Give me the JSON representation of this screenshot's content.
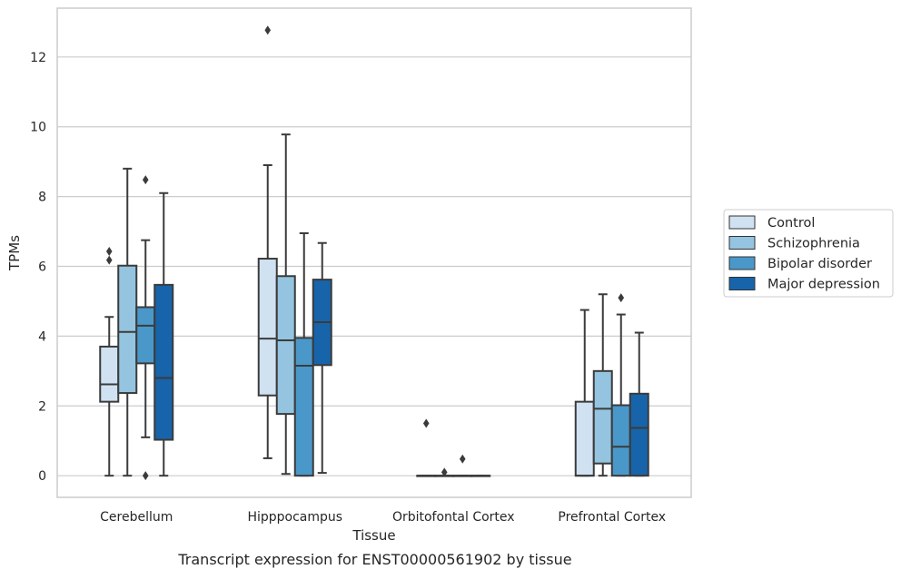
{
  "chart_data": {
    "type": "box",
    "xlabel": "Tissue",
    "ylabel": "TPMs",
    "caption": "Transcript expression for ENST00000561902 by tissue",
    "ylim": [
      -0.62,
      13.4
    ],
    "yticks": [
      0,
      2,
      4,
      6,
      8,
      10,
      12
    ],
    "grid": "horizontal",
    "legend_position": "right",
    "categories": [
      "Cerebellum",
      "Hipppocampus",
      "Orbitofontal Cortex",
      "Prefrontal Cortex"
    ],
    "series": [
      {
        "name": "Control",
        "color": "#d0e1f2",
        "boxes": [
          {
            "whislo": 0.0,
            "q1": 2.12,
            "med": 2.62,
            "q3": 3.7,
            "whishi": 4.55,
            "fliers": [
              6.18,
              6.43
            ]
          },
          {
            "whislo": 0.5,
            "q1": 2.3,
            "med": 3.93,
            "q3": 6.22,
            "whishi": 8.9,
            "fliers": [
              12.77
            ]
          },
          {
            "whislo": 0.0,
            "q1": 0.0,
            "med": 0.0,
            "q3": 0.0,
            "whishi": 0.0,
            "fliers": [
              1.5
            ]
          },
          {
            "whislo": 0.0,
            "q1": 0.0,
            "med": 0.0,
            "q3": 2.12,
            "whishi": 4.75,
            "fliers": []
          }
        ]
      },
      {
        "name": "Schizophrenia",
        "color": "#94c4df",
        "boxes": [
          {
            "whislo": 0.0,
            "q1": 2.37,
            "med": 4.12,
            "q3": 6.02,
            "whishi": 8.8,
            "fliers": []
          },
          {
            "whislo": 0.05,
            "q1": 1.77,
            "med": 3.88,
            "q3": 5.72,
            "whishi": 9.78,
            "fliers": []
          },
          {
            "whislo": 0.0,
            "q1": 0.0,
            "med": 0.0,
            "q3": 0.0,
            "whishi": 0.0,
            "fliers": [
              0.1
            ]
          },
          {
            "whislo": 0.0,
            "q1": 0.35,
            "med": 1.92,
            "q3": 3.0,
            "whishi": 5.2,
            "fliers": []
          }
        ]
      },
      {
        "name": "Bipolar disorder",
        "color": "#4a98c9",
        "boxes": [
          {
            "whislo": 1.1,
            "q1": 3.22,
            "med": 4.3,
            "q3": 4.83,
            "whishi": 6.75,
            "fliers": [
              0.0,
              8.48
            ]
          },
          {
            "whislo": 0.0,
            "q1": 0.0,
            "med": 3.15,
            "q3": 3.95,
            "whishi": 6.95,
            "fliers": []
          },
          {
            "whislo": 0.0,
            "q1": 0.0,
            "med": 0.0,
            "q3": 0.0,
            "whishi": 0.0,
            "fliers": [
              0.48
            ]
          },
          {
            "whislo": 0.0,
            "q1": 0.0,
            "med": 0.83,
            "q3": 2.02,
            "whishi": 4.62,
            "fliers": [
              5.1
            ]
          }
        ]
      },
      {
        "name": "Major depression",
        "color": "#1764ab",
        "boxes": [
          {
            "whislo": 0.0,
            "q1": 1.03,
            "med": 2.8,
            "q3": 5.47,
            "whishi": 8.1,
            "fliers": []
          },
          {
            "whislo": 0.08,
            "q1": 3.17,
            "med": 4.4,
            "q3": 5.62,
            "whishi": 6.67,
            "fliers": []
          },
          {
            "whislo": 0.0,
            "q1": 0.0,
            "med": 0.0,
            "q3": 0.0,
            "whishi": 0.0,
            "fliers": []
          },
          {
            "whislo": 0.0,
            "q1": 0.0,
            "med": 1.37,
            "q3": 2.35,
            "whishi": 4.1,
            "fliers": []
          }
        ]
      }
    ]
  }
}
